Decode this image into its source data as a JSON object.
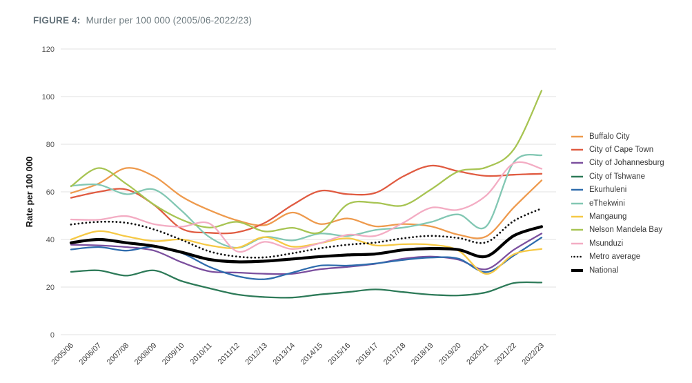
{
  "title": {
    "label": "FIGURE 4:",
    "text": "Murder per 100 000 (2005/06-2022/23)"
  },
  "chart_data": {
    "type": "line",
    "title": "Murder per 100 000 (2005/06-2022/23)",
    "xlabel": "",
    "ylabel": "Rate per 100 000",
    "ylim": [
      0,
      120
    ],
    "yticks": [
      0,
      20,
      40,
      60,
      80,
      100,
      120
    ],
    "grid": true,
    "legend_position": "right",
    "categories": [
      "2005/06",
      "2006/07",
      "2007/08",
      "2008/09",
      "2009/10",
      "2010/11",
      "2011/12",
      "2012/13",
      "2013/14",
      "2014/15",
      "2015/16",
      "2016/17",
      "2017/18",
      "2018/19",
      "2019/20",
      "2020/21",
      "2021/22",
      "2022/23"
    ],
    "series": [
      {
        "name": "Buffalo City",
        "color": "#EE9A4D",
        "style": "solid",
        "width": 2.3,
        "values": [
          59.5,
          63.5,
          70.0,
          66.5,
          58.0,
          52.3,
          48.0,
          46.0,
          51.3,
          46.5,
          48.8,
          45.5,
          46.5,
          45.5,
          42.0,
          41.3,
          53.5,
          64.8
        ]
      },
      {
        "name": "City of Cape Town",
        "color": "#E05B41",
        "style": "solid",
        "width": 2.3,
        "values": [
          57.5,
          60.0,
          61.0,
          54.5,
          44.5,
          42.8,
          43.0,
          47.0,
          54.5,
          60.4,
          59.0,
          59.6,
          66.5,
          71.0,
          68.6,
          66.7,
          67.2,
          67.6
        ]
      },
      {
        "name": "City of Johannesburg",
        "color": "#7B4F9E",
        "style": "solid",
        "width": 2.3,
        "values": [
          37.8,
          37.5,
          36.8,
          35.3,
          30.4,
          26.6,
          26.1,
          25.6,
          25.6,
          27.5,
          28.5,
          29.8,
          31.9,
          32.8,
          31.5,
          27.5,
          35.7,
          42.5
        ]
      },
      {
        "name": "City of Tshwane",
        "color": "#2D7A58",
        "style": "solid",
        "width": 2.3,
        "values": [
          26.4,
          27.0,
          24.8,
          27.0,
          22.5,
          19.5,
          16.9,
          15.8,
          15.6,
          16.9,
          17.9,
          19.0,
          17.9,
          16.8,
          16.5,
          17.8,
          21.7,
          21.9
        ]
      },
      {
        "name": "Ekurhuleni",
        "color": "#2F6CAD",
        "style": "solid",
        "width": 2.3,
        "values": [
          35.8,
          36.8,
          35.3,
          37.0,
          34.3,
          28.5,
          24.6,
          23.3,
          26.1,
          29.0,
          29.0,
          29.9,
          31.4,
          32.4,
          31.9,
          26.3,
          33.3,
          40.8
        ]
      },
      {
        "name": "eThekwini",
        "color": "#82C7B3",
        "style": "solid",
        "width": 2.3,
        "values": [
          62.5,
          63.0,
          59.0,
          61.0,
          52.0,
          41.0,
          36.5,
          41.0,
          39.6,
          42.5,
          41.5,
          44.0,
          45.0,
          47.3,
          50.5,
          45.5,
          72.5,
          75.4
        ]
      },
      {
        "name": "Mangaung",
        "color": "#F6C945",
        "style": "solid",
        "width": 2.3,
        "values": [
          40.0,
          43.5,
          41.3,
          39.3,
          40.0,
          37.5,
          36.5,
          41.0,
          37.0,
          38.5,
          40.5,
          37.5,
          38.0,
          37.8,
          35.3,
          25.5,
          33.8,
          36.0
        ]
      },
      {
        "name": "Nelson Mandela Bay",
        "color": "#A7C452",
        "style": "solid",
        "width": 2.3,
        "values": [
          62.3,
          70.0,
          63.3,
          54.6,
          48.3,
          45.0,
          47.4,
          43.4,
          44.9,
          43.0,
          54.8,
          55.4,
          54.3,
          61.0,
          68.6,
          70.3,
          77.9,
          102.5
        ]
      },
      {
        "name": "Msunduzi",
        "color": "#F3ACC3",
        "style": "solid",
        "width": 2.3,
        "values": [
          48.4,
          48.3,
          49.8,
          46.4,
          45.4,
          46.7,
          35.0,
          39.0,
          36.0,
          38.5,
          42.0,
          41.5,
          47.0,
          53.3,
          52.5,
          58.5,
          72.0,
          69.7
        ]
      },
      {
        "name": "Metro average",
        "color": "#111111",
        "style": "dotted",
        "width": 2.8,
        "values": [
          46.3,
          47.4,
          47.0,
          44.2,
          39.8,
          35.0,
          32.8,
          32.5,
          34.2,
          36.3,
          37.8,
          38.7,
          40.5,
          41.5,
          40.6,
          38.8,
          47.8,
          53.0
        ]
      },
      {
        "name": "National",
        "color": "#000000",
        "style": "solid",
        "width": 4.2,
        "values": [
          38.6,
          40.0,
          38.6,
          37.2,
          34.6,
          31.6,
          30.6,
          30.9,
          31.8,
          32.8,
          33.5,
          33.9,
          35.6,
          36.2,
          35.7,
          32.9,
          41.6,
          45.4
        ]
      }
    ]
  }
}
